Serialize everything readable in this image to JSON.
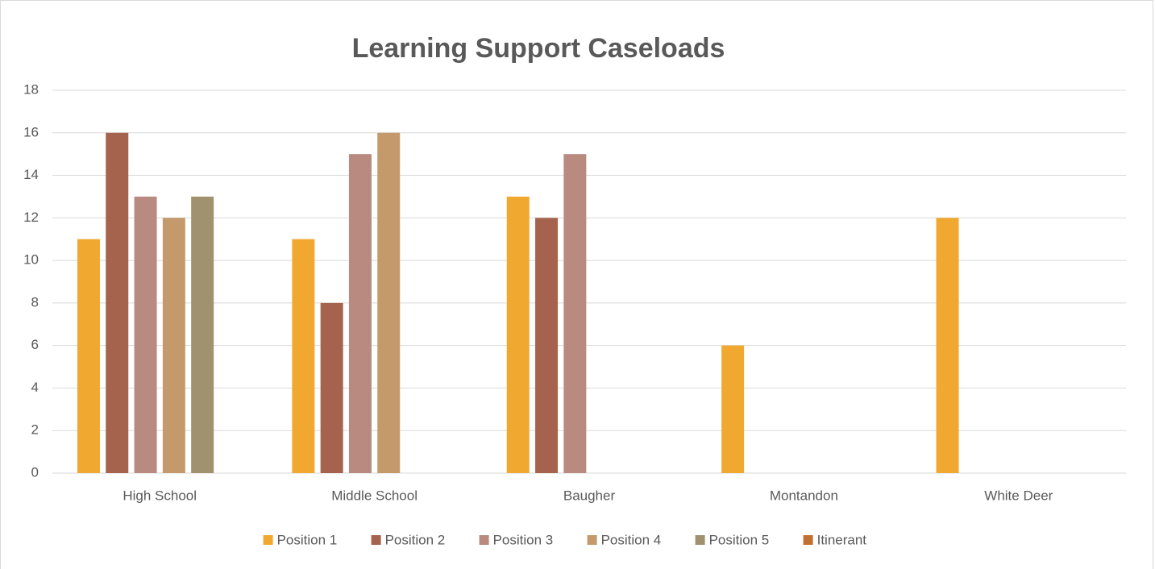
{
  "chart_data": {
    "type": "bar",
    "title": "Learning Support Caseloads",
    "categories": [
      "High School",
      "Middle School",
      "Baugher",
      "Montandon",
      "White Deer"
    ],
    "series": [
      {
        "name": "Position 1",
        "color": "#f0a830",
        "values": [
          11,
          11,
          13,
          6,
          12
        ]
      },
      {
        "name": "Position 2",
        "color": "#a5634d",
        "values": [
          16,
          8,
          12,
          null,
          null
        ]
      },
      {
        "name": "Position 3",
        "color": "#b88a80",
        "values": [
          13,
          15,
          15,
          null,
          null
        ]
      },
      {
        "name": "Position 4",
        "color": "#c49a6c",
        "values": [
          12,
          16,
          null,
          null,
          null
        ]
      },
      {
        "name": "Position 5",
        "color": "#a0926e",
        "values": [
          13,
          null,
          null,
          null,
          null
        ]
      },
      {
        "name": "Itinerant",
        "color": "#c07030",
        "values": [
          null,
          null,
          null,
          null,
          null
        ]
      }
    ],
    "ylim": [
      0,
      18
    ],
    "yticks": [
      0,
      2,
      4,
      6,
      8,
      10,
      12,
      14,
      16,
      18
    ],
    "grid": true,
    "legend": "bottom"
  }
}
